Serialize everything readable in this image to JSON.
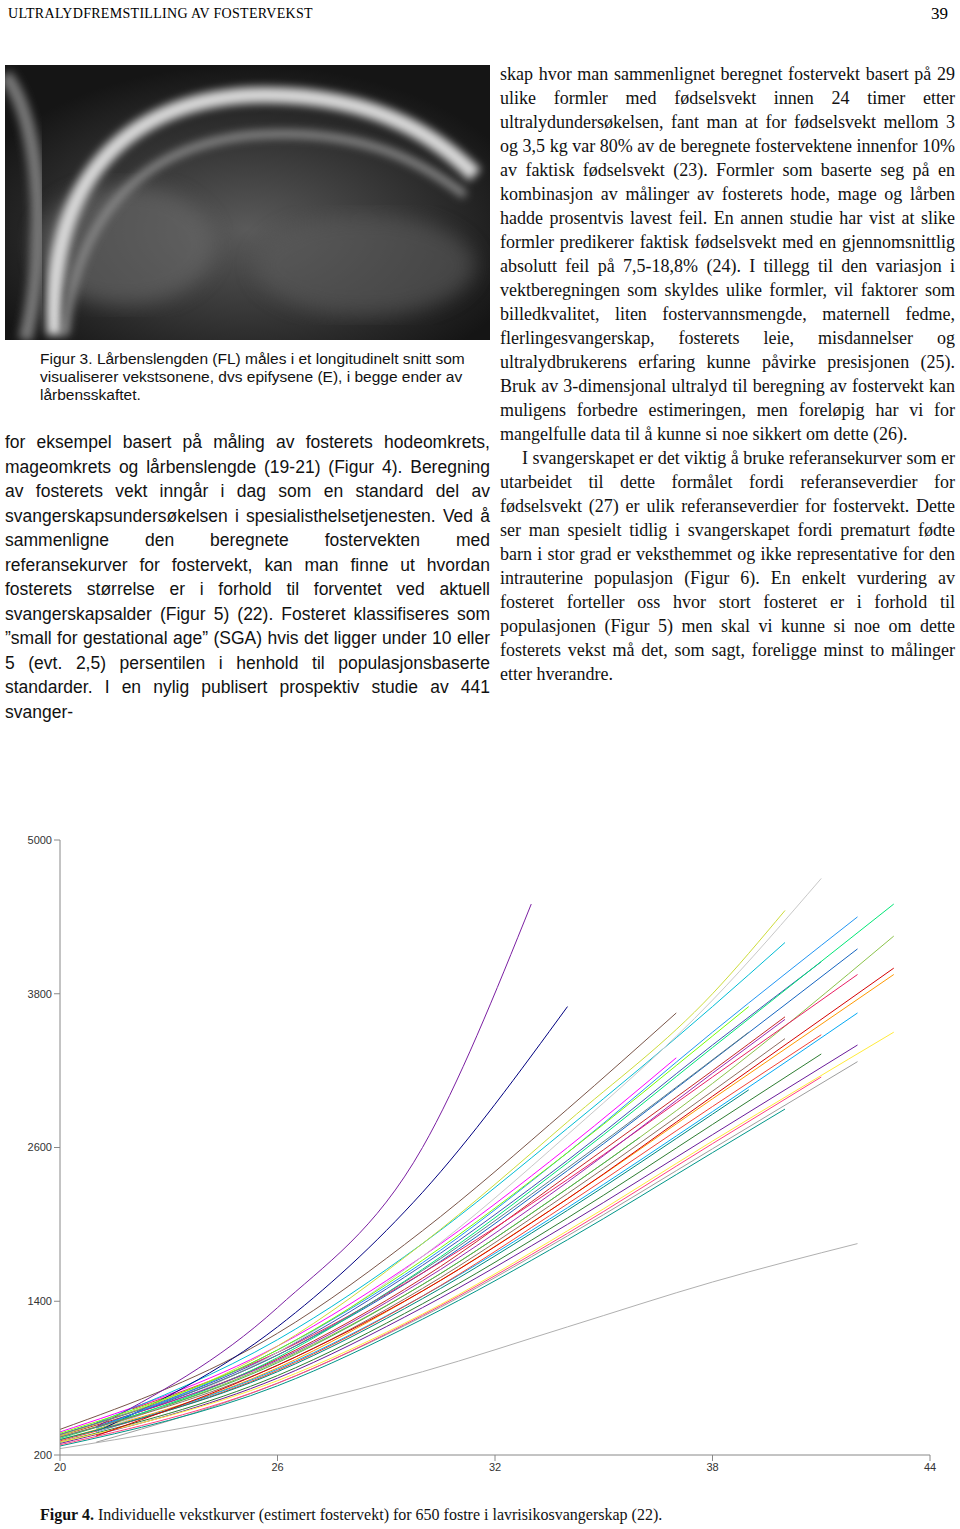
{
  "header": {
    "title": "ULTRALYDFREMSTILLING AV FOSTERVEKST",
    "page": "39"
  },
  "figure3": {
    "label": "Figur 3.",
    "caption": "Lårbenslengden (FL) måles i et longitudinelt snitt som visualiserer vekstsonene, dvs epifysene (E), i begge ender av lårbensskaftet."
  },
  "left_column": [
    "for eksempel basert på måling av fosterets hodeomkrets, mageomkrets og lårbenslengde (19-21) (Figur 4). Beregning av fosterets vekt inngår i dag som en standard del av svangerskapsundersøkelsen i spesialisthelsetjenesten. Ved å sammenligne den beregnete fostervekten med referansekurver for fostervekt, kan man finne ut hvordan fosterets størrelse er i forhold til forventet ved aktuell svangerskapsalder (Figur 5) (22). Fosteret klassifiseres som ”small for gestational age” (SGA) hvis det ligger under 10 eller 5 (evt. 2,5) persentilen i henhold til populasjonsbaserte standarder. I en nylig publisert prospektiv studie av 441 svanger-"
  ],
  "right_column": [
    "skap hvor man sammenlignet beregnet fostervekt basert på 29 ulike formler med fødselsvekt innen 24 timer etter ultralydundersøkelsen, fant man at for fødselsvekt mellom 3 og 3,5 kg var 80% av de beregnete fostervektene innenfor 10% av faktisk fødselsvekt (23). Formler som baserte seg på en kombinasjon av målinger av fosterets hode, mage og lårben hadde prosentvis lavest feil. En annen studie har vist at slike formler predikerer faktisk fødselsvekt med en gjennomsnittlig absolutt feil på 7,5-18,8% (24). I tillegg til den variasjon i vektberegningen som skyldes ulike formler, vil faktorer som billedkvalitet, liten fostervannsmengde, maternell fedme, flerlingesvangerskap, fosterets leie, misdannelser og ultralydbrukerens erfaring kunne påvirke presisjonen (25). Bruk av 3-dimensjonal ultralyd til beregning av fostervekt kan muligens forbedre estimeringen, men foreløpig har vi for mangelfulle data til å kunne si noe sikkert om dette (26).",
    "I svangerskapet er det viktig å bruke referansekurver som er utarbeidet til dette formålet fordi referanseverdier for fødselsvekt (27) er ulik referanseverdier for fostervekt. Dette ser man spesielt tidlig i svangerskapet fordi prematurt fødte barn i stor grad er veksthemmet og ikke representative for den intrauterine populasjon (Figur 6). En enkelt vurdering av fosteret forteller oss hvor stort fosteret er i forhold til populasjonen (Figur 5) men skal vi kunne si noe om dette fosterets vekst må det, som sagt, foreligge minst to målinger etter hverandre."
  ],
  "figure4": {
    "label": "Figur 4.",
    "caption": "Individuelle vekstkurver (estimert fostervekt) for 650 fostre i lavrisikosvangerskap (22)."
  },
  "chart_data": {
    "type": "line",
    "xlim": [
      20,
      44
    ],
    "ylim": [
      200,
      5000
    ],
    "xticks": [
      20,
      26,
      32,
      38,
      44
    ],
    "yticks": [
      200,
      1400,
      2600,
      3800,
      5000
    ],
    "series": [
      {
        "color": "#b0b0b0",
        "x": [
          20,
          26,
          30,
          34,
          38,
          42
        ],
        "values": [
          250,
          560,
          850,
          1200,
          1550,
          1850
        ]
      },
      {
        "color": "#9e9e9e",
        "x": [
          21,
          26,
          30,
          34,
          38,
          42
        ],
        "values": [
          300,
          760,
          1280,
          1910,
          2590,
          3270
        ]
      },
      {
        "color": "#2e7d32",
        "x": [
          20,
          26,
          30,
          34,
          38,
          41
        ],
        "values": [
          300,
          820,
          1380,
          2050,
          2780,
          3330
        ]
      },
      {
        "color": "#c62828",
        "x": [
          20,
          26,
          30,
          34,
          38,
          40
        ],
        "values": [
          350,
          950,
          1580,
          2380,
          3200,
          3620
        ]
      },
      {
        "color": "#1565c0",
        "x": [
          21,
          26,
          30,
          34,
          38,
          42
        ],
        "values": [
          420,
          980,
          1620,
          2420,
          3280,
          4150
        ]
      },
      {
        "color": "#ff00ff",
        "x": [
          20,
          26,
          30,
          34,
          37
        ],
        "values": [
          380,
          1050,
          1750,
          2600,
          3300
        ]
      },
      {
        "color": "#00bcd4",
        "x": [
          21,
          26,
          30,
          34,
          38,
          40
        ],
        "values": [
          450,
          1100,
          1850,
          2750,
          3700,
          4200
        ]
      },
      {
        "color": "#ff9800",
        "x": [
          20,
          26,
          30,
          34,
          38,
          43
        ],
        "values": [
          320,
          880,
          1480,
          2200,
          2980,
          3950
        ]
      },
      {
        "color": "#6a1b9a",
        "x": [
          20,
          26,
          30,
          34,
          38,
          42
        ],
        "values": [
          290,
          800,
          1350,
          2000,
          2700,
          3400
        ]
      },
      {
        "color": "#8bc34a",
        "x": [
          21,
          26,
          30,
          34,
          38,
          43
        ],
        "values": [
          400,
          930,
          1530,
          2280,
          3100,
          4250
        ]
      },
      {
        "color": "#3f51b5",
        "x": [
          20,
          26,
          30,
          34,
          38,
          41
        ],
        "values": [
          360,
          1000,
          1680,
          2500,
          3400,
          4050
        ]
      },
      {
        "color": "#009688",
        "x": [
          20,
          26,
          30,
          34,
          38,
          40
        ],
        "values": [
          270,
          740,
          1260,
          1880,
          2560,
          2900
        ]
      },
      {
        "color": "#e91e63",
        "x": [
          22,
          26,
          30,
          34,
          38,
          42
        ],
        "values": [
          560,
          1000,
          1620,
          2350,
          3150,
          3950
        ]
      },
      {
        "color": "#795548",
        "x": [
          20,
          26,
          30,
          34,
          37
        ],
        "values": [
          400,
          1150,
          1950,
          2900,
          3650
        ]
      },
      {
        "color": "#4caf50",
        "x": [
          20,
          26,
          30,
          34,
          36
        ],
        "values": [
          340,
          920,
          1530,
          2280,
          2680
        ]
      },
      {
        "color": "#03a9f4",
        "x": [
          21,
          26,
          30,
          34,
          38,
          42
        ],
        "values": [
          380,
          870,
          1440,
          2130,
          2880,
          3650
        ]
      },
      {
        "color": "#f44336",
        "x": [
          20,
          26,
          30,
          34,
          38,
          41
        ],
        "values": [
          310,
          860,
          1440,
          2160,
          2920,
          3480
        ]
      },
      {
        "color": "#7b1fa2",
        "x": [
          21,
          26,
          30,
          33
        ],
        "values": [
          420,
          1350,
          2600,
          4500
        ]
      },
      {
        "color": "#000080",
        "x": [
          21,
          26,
          30,
          34
        ],
        "values": [
          380,
          1200,
          2250,
          3700
        ]
      },
      {
        "color": "#cddc39",
        "x": [
          20,
          26,
          30,
          34,
          38,
          40
        ],
        "values": [
          350,
          1050,
          1850,
          2800,
          3800,
          4450
        ]
      },
      {
        "color": "#c8c8c8",
        "x": [
          21,
          26,
          30,
          34,
          38,
          41
        ],
        "values": [
          380,
          1000,
          1750,
          2700,
          3750,
          4700
        ]
      },
      {
        "color": "#00e676",
        "x": [
          20,
          26,
          30,
          34,
          38,
          43
        ],
        "values": [
          330,
          960,
          1650,
          2480,
          3380,
          4500
        ]
      },
      {
        "color": "#ffeb3b",
        "x": [
          20,
          26,
          30,
          34,
          38,
          43
        ],
        "values": [
          300,
          780,
          1300,
          1950,
          2650,
          3500
        ]
      },
      {
        "color": "#9c27b0",
        "x": [
          22,
          26,
          30,
          34,
          38,
          40
        ],
        "values": [
          520,
          940,
          1560,
          2330,
          3180,
          3600
        ]
      },
      {
        "color": "#607d8b",
        "x": [
          20,
          26,
          30,
          34,
          39
        ],
        "values": [
          360,
          980,
          1640,
          2440,
          3500
        ]
      },
      {
        "color": "#ff4081",
        "x": [
          20,
          26,
          30,
          34,
          38,
          41
        ],
        "values": [
          280,
          760,
          1290,
          1930,
          2630,
          3150
        ]
      },
      {
        "color": "#2196f3",
        "x": [
          21,
          26,
          30,
          34,
          38,
          42
        ],
        "values": [
          410,
          1020,
          1700,
          2560,
          3500,
          4400
        ]
      },
      {
        "color": "#8d6e63",
        "x": [
          20,
          26,
          30,
          34,
          38,
          40
        ],
        "values": [
          340,
          900,
          1500,
          2240,
          3040,
          3450
        ]
      },
      {
        "color": "#00897b",
        "x": [
          20,
          26,
          30,
          34,
          38,
          39
        ],
        "values": [
          320,
          850,
          1420,
          2110,
          2860,
          3050
        ]
      },
      {
        "color": "#d50000",
        "x": [
          21,
          26,
          30,
          34,
          38,
          43
        ],
        "values": [
          350,
          900,
          1480,
          2200,
          3000,
          4000
        ]
      },
      {
        "color": "#76ff03",
        "x": [
          20,
          26,
          30,
          34,
          38,
          39
        ],
        "values": [
          370,
          1020,
          1720,
          2560,
          3470,
          3700
        ]
      }
    ]
  }
}
